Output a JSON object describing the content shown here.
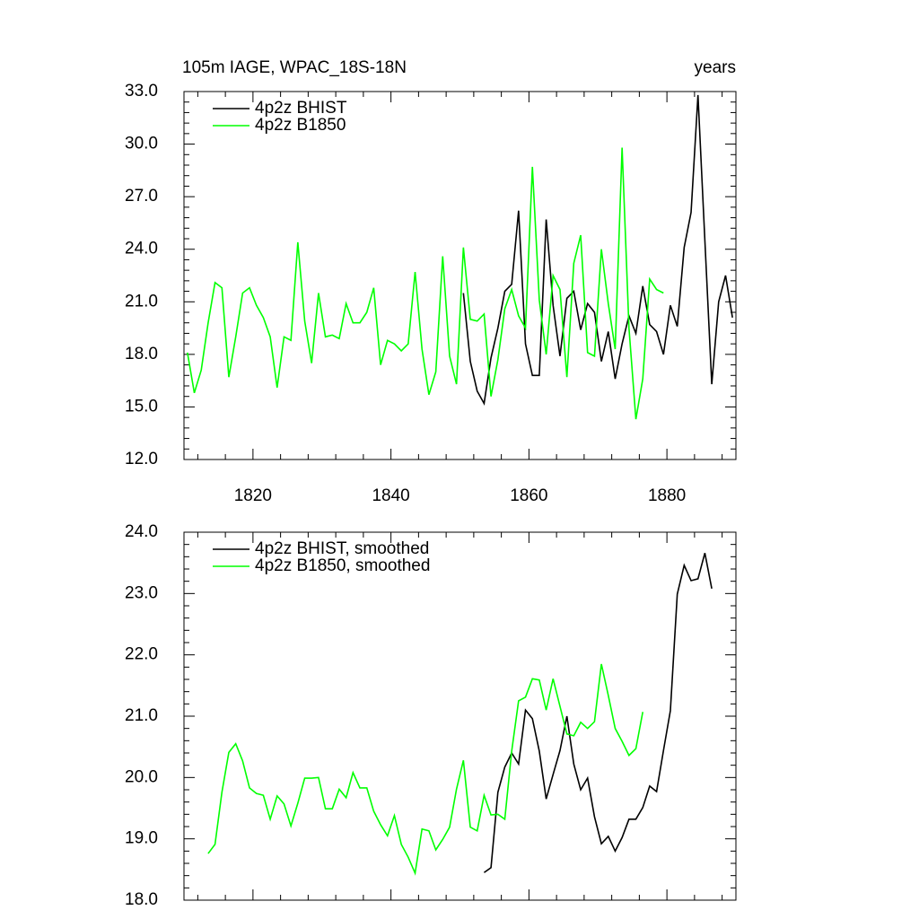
{
  "chart_data": [
    {
      "type": "line",
      "title": "105m IAGE, WPAC_18S-18N",
      "subtitle": "years",
      "xlim": [
        1810,
        1890
      ],
      "xticks": [
        1820,
        1840,
        1860,
        1880
      ],
      "ylim": [
        12,
        33
      ],
      "yticks": [
        {
          "value": 12,
          "label": "12.0"
        },
        {
          "value": 15,
          "label": "15.0"
        },
        {
          "value": 18,
          "label": "18.0"
        },
        {
          "value": 21,
          "label": "21.0"
        },
        {
          "value": 24,
          "label": "24.0"
        },
        {
          "value": 27,
          "label": "27.0"
        },
        {
          "value": 30,
          "label": "30.0"
        },
        {
          "value": 33,
          "label": "33.0"
        }
      ],
      "series": [
        {
          "name": "4p2z BHIST",
          "color": "#000000",
          "x": [
            1850.5,
            1851.5,
            1852.5,
            1853.5,
            1854.5,
            1855.5,
            1856.5,
            1857.5,
            1858.5,
            1859.5,
            1860.5,
            1861.5,
            1862.5,
            1863.5,
            1864.5,
            1865.5,
            1866.5,
            1867.5,
            1868.5,
            1869.5,
            1870.5,
            1871.5,
            1872.5,
            1873.5,
            1874.5,
            1875.5,
            1876.5,
            1877.5,
            1878.5,
            1879.5,
            1880.5,
            1881.5,
            1882.5,
            1883.5,
            1884.5,
            1885.5,
            1886.5,
            1887.5,
            1888.5,
            1889.5
          ],
          "values": [
            21.5,
            17.6,
            15.9,
            15.2,
            17.8,
            19.5,
            21.6,
            22.0,
            26.2,
            18.6,
            16.8,
            16.8,
            25.7,
            20.8,
            17.9,
            21.2,
            21.6,
            19.4,
            20.9,
            20.4,
            17.6,
            19.3,
            16.6,
            18.6,
            20.2,
            19.2,
            21.9,
            19.7,
            19.3,
            18.0,
            20.8,
            19.6,
            24.1,
            26.1,
            32.8,
            24.5,
            16.3,
            21.0,
            22.5,
            20.1
          ]
        },
        {
          "name": "4p2z B1850",
          "color": "#00ff00",
          "x": [
            1810.5,
            1811.5,
            1812.5,
            1813.5,
            1814.5,
            1815.5,
            1816.5,
            1817.5,
            1818.5,
            1819.5,
            1820.5,
            1821.5,
            1822.5,
            1823.5,
            1824.5,
            1825.5,
            1826.5,
            1827.5,
            1828.5,
            1829.5,
            1830.5,
            1831.5,
            1832.5,
            1833.5,
            1834.5,
            1835.5,
            1836.5,
            1837.5,
            1838.5,
            1839.5,
            1840.5,
            1841.5,
            1842.5,
            1843.5,
            1844.5,
            1845.5,
            1846.5,
            1847.5,
            1848.5,
            1849.5,
            1850.5,
            1851.5,
            1852.5,
            1853.5,
            1854.5,
            1855.5,
            1856.5,
            1857.5,
            1858.5,
            1859.5,
            1860.5,
            1861.5,
            1862.5,
            1863.5,
            1864.5,
            1865.5,
            1866.5,
            1867.5,
            1868.5,
            1869.5,
            1870.5,
            1871.5,
            1872.5,
            1873.5,
            1874.5,
            1875.5,
            1876.5,
            1877.5,
            1878.5,
            1879.5
          ],
          "values": [
            18.1,
            15.8,
            17.1,
            19.8,
            22.1,
            21.8,
            16.7,
            19.0,
            21.5,
            21.8,
            20.8,
            20.1,
            19.0,
            16.1,
            19.0,
            18.8,
            24.4,
            19.9,
            17.5,
            21.5,
            19.0,
            19.1,
            18.9,
            20.9,
            19.8,
            19.8,
            20.4,
            21.8,
            17.4,
            18.8,
            18.6,
            18.2,
            18.6,
            22.7,
            18.3,
            15.7,
            17.0,
            23.6,
            17.9,
            16.3,
            24.1,
            20.0,
            19.9,
            20.3,
            15.6,
            17.7,
            20.6,
            21.7,
            20.2,
            19.5,
            28.7,
            21.1,
            18.0,
            22.5,
            21.7,
            16.7,
            23.2,
            24.8,
            18.1,
            17.9,
            24.0,
            20.9,
            18.3,
            29.8,
            19.5,
            14.3,
            16.6,
            22.3,
            21.7,
            21.5
          ]
        }
      ]
    },
    {
      "type": "line",
      "xlim": [
        1810,
        1890
      ],
      "xticks": [
        1820,
        1840,
        1860,
        1880
      ],
      "ylim": [
        18,
        24
      ],
      "yticks": [
        {
          "value": 18,
          "label": "18.0"
        },
        {
          "value": 19,
          "label": "19.0"
        },
        {
          "value": 20,
          "label": "20.0"
        },
        {
          "value": 21,
          "label": "21.0"
        },
        {
          "value": 22,
          "label": "22.0"
        },
        {
          "value": 23,
          "label": "23.0"
        },
        {
          "value": 24,
          "label": "24.0"
        }
      ],
      "series": [
        {
          "name": "4p2z BHIST, smoothed",
          "color": "#000000",
          "x": [
            1853.5,
            1854.5,
            1855.5,
            1856.5,
            1857.5,
            1858.5,
            1859.5,
            1860.5,
            1861.5,
            1862.5,
            1863.5,
            1864.5,
            1865.5,
            1866.5,
            1867.5,
            1868.5,
            1869.5,
            1870.5,
            1871.5,
            1872.5,
            1873.5,
            1874.5,
            1875.5,
            1876.5,
            1877.5,
            1878.5,
            1879.5,
            1880.5,
            1881.5,
            1882.5,
            1883.5,
            1884.5,
            1885.5,
            1886.5
          ],
          "values": [
            18.45,
            18.53,
            19.76,
            20.17,
            20.4,
            20.22,
            21.1,
            20.96,
            20.43,
            19.65,
            20.05,
            20.44,
            21.0,
            20.22,
            19.8,
            19.99,
            19.36,
            18.92,
            19.04,
            18.8,
            19.02,
            19.32,
            19.32,
            19.51,
            19.86,
            19.77,
            20.44,
            21.09,
            22.99,
            23.46,
            23.21,
            23.24,
            23.66,
            23.08
          ]
        },
        {
          "name": "4p2z B1850, smoothed",
          "color": "#00ff00",
          "x": [
            1813.5,
            1814.5,
            1815.5,
            1816.5,
            1817.5,
            1818.5,
            1819.5,
            1820.5,
            1821.5,
            1822.5,
            1823.5,
            1824.5,
            1825.5,
            1826.5,
            1827.5,
            1828.5,
            1829.5,
            1830.5,
            1831.5,
            1832.5,
            1833.5,
            1834.5,
            1835.5,
            1836.5,
            1837.5,
            1838.5,
            1839.5,
            1840.5,
            1841.5,
            1842.5,
            1843.5,
            1844.5,
            1845.5,
            1846.5,
            1847.5,
            1848.5,
            1849.5,
            1850.5,
            1851.5,
            1852.5,
            1853.5,
            1854.5,
            1855.5,
            1856.5,
            1857.5,
            1858.5,
            1859.5,
            1860.5,
            1861.5,
            1862.5,
            1863.5,
            1864.5,
            1865.5,
            1866.5,
            1867.5,
            1868.5,
            1869.5,
            1870.5,
            1871.5,
            1872.5,
            1873.5,
            1874.5,
            1875.5,
            1876.5
          ],
          "values": [
            18.76,
            18.91,
            19.76,
            20.41,
            20.55,
            20.27,
            19.83,
            19.74,
            19.71,
            19.32,
            19.7,
            19.57,
            19.21,
            19.58,
            19.99,
            19.99,
            20.0,
            19.49,
            19.49,
            19.81,
            19.67,
            20.08,
            19.83,
            19.83,
            19.45,
            19.23,
            19.05,
            19.38,
            18.91,
            18.7,
            18.44,
            19.16,
            19.13,
            18.82,
            18.99,
            19.19,
            19.81,
            20.28,
            19.19,
            19.13,
            19.71,
            19.39,
            19.4,
            19.32,
            20.43,
            21.25,
            21.31,
            21.61,
            21.59,
            21.1,
            21.61,
            21.16,
            20.71,
            20.68,
            20.9,
            20.8,
            20.91,
            21.85,
            21.34,
            20.8,
            20.59,
            20.36,
            20.47,
            21.07
          ]
        }
      ]
    }
  ]
}
